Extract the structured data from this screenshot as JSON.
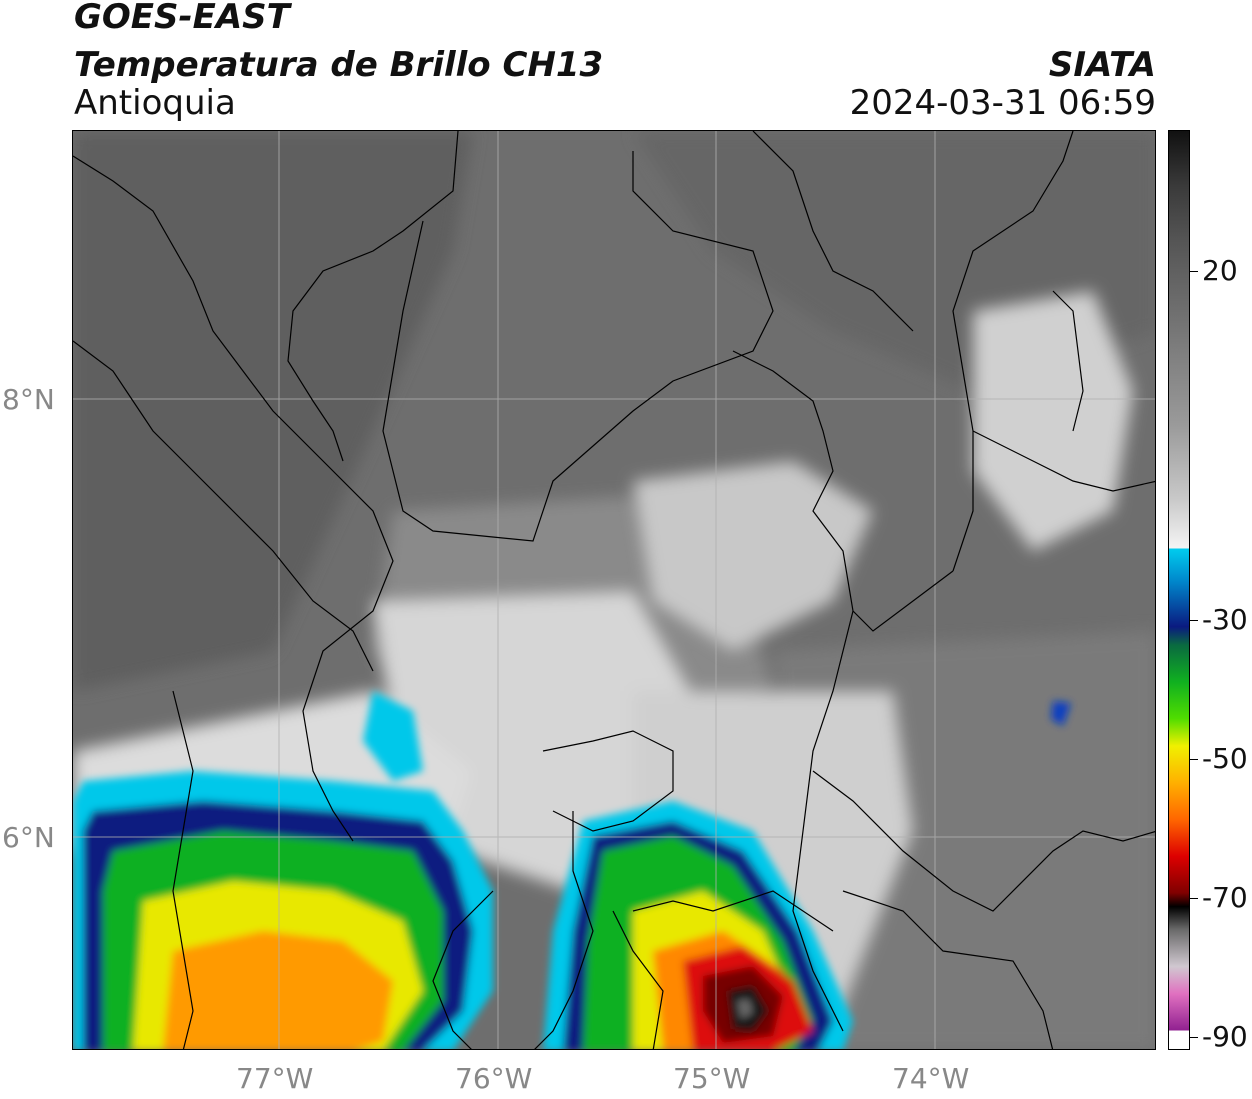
{
  "header": {
    "satellite": "GOES-EAST",
    "product": "Temperatura de Brillo CH13",
    "region": "Antioquia",
    "agency": "SIATA",
    "datetime": "2024-03-31 06:59"
  },
  "map": {
    "lat_labels": [
      "8°N",
      "6°N"
    ],
    "lon_labels": [
      "77°W",
      "76°W",
      "75°W",
      "74°W"
    ]
  },
  "colorbar": {
    "tick_labels": [
      "20",
      "-30",
      "-50",
      "-70",
      "-90"
    ],
    "colors": {
      "warm_gray_top": "#111111",
      "gray": "#8c8c8c",
      "white": "#f5f5f5",
      "cyan": "#00ccee",
      "dark_blue": "#0a1a80",
      "green": "#10b020",
      "yellow": "#f0f000",
      "orange": "#ff8800",
      "red": "#cc0000",
      "black": "#000000",
      "pink": "#e070c0",
      "purple": "#902090"
    }
  }
}
